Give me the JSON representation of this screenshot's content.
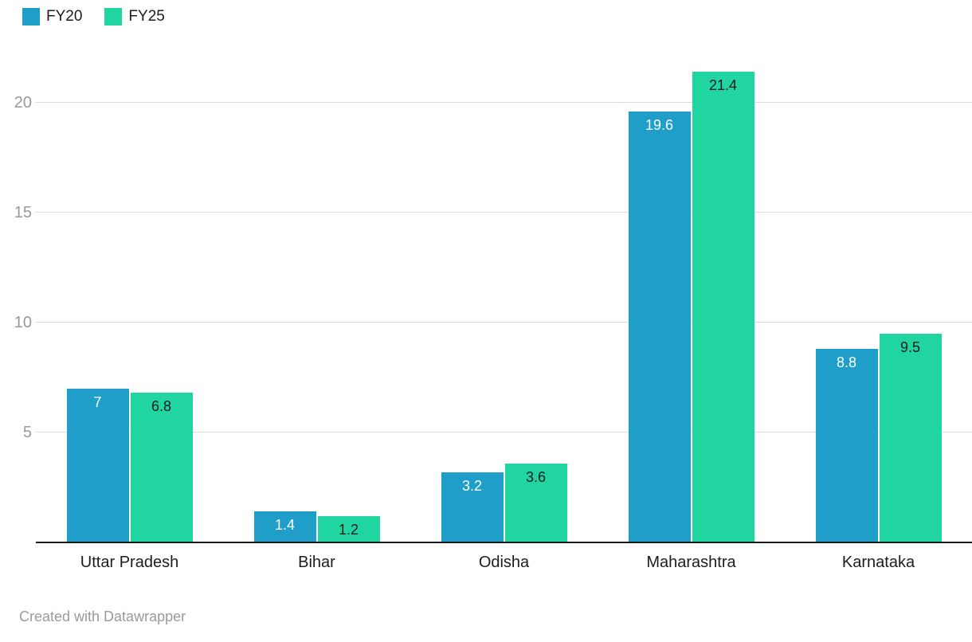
{
  "chart_data": {
    "type": "bar",
    "title": "",
    "categories": [
      "Uttar Pradesh",
      "Bihar",
      "Odisha",
      "Maharashtra",
      "Karnataka"
    ],
    "series": [
      {
        "name": "FY20",
        "values": [
          7,
          1.4,
          3.2,
          19.6,
          8.8
        ],
        "color": "#1E9EC9",
        "label_color": "#ffffff"
      },
      {
        "name": "FY25",
        "values": [
          6.8,
          1.2,
          3.6,
          21.4,
          9.5
        ],
        "color": "#20D5A0",
        "label_color": "#1d1d1d"
      }
    ],
    "xlabel": "",
    "ylabel": "",
    "yticks": [
      5,
      10,
      15,
      20
    ],
    "ylim": [
      0,
      22.5
    ],
    "grid": "horizontal",
    "legend_position": "top-left"
  },
  "legend": {
    "items": [
      {
        "label": "FY20"
      },
      {
        "label": "FY25"
      }
    ]
  },
  "footer": {
    "text": "Created with Datawrapper"
  }
}
